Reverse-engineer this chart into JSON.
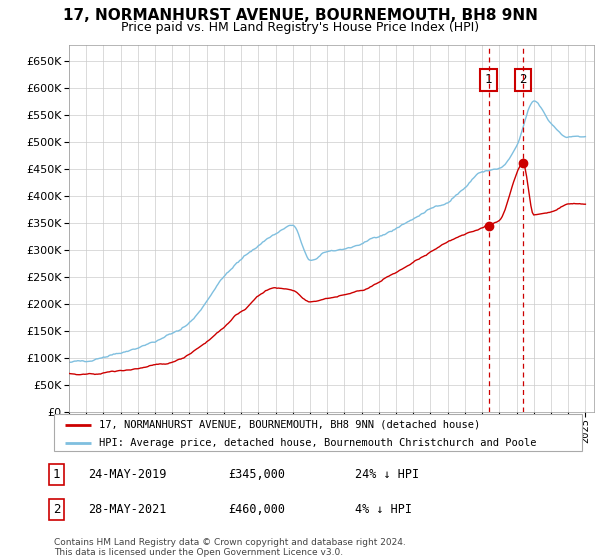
{
  "title": "17, NORMANHURST AVENUE, BOURNEMOUTH, BH8 9NN",
  "subtitle": "Price paid vs. HM Land Registry's House Price Index (HPI)",
  "legend_line1": "17, NORMANHURST AVENUE, BOURNEMOUTH, BH8 9NN (detached house)",
  "legend_line2": "HPI: Average price, detached house, Bournemouth Christchurch and Poole",
  "footer": "Contains HM Land Registry data © Crown copyright and database right 2024.\nThis data is licensed under the Open Government Licence v3.0.",
  "transaction1_date": "24-MAY-2019",
  "transaction1_price": 345000,
  "transaction1_hpi": "24% ↓ HPI",
  "transaction2_date": "28-MAY-2021",
  "transaction2_price": 460000,
  "transaction2_hpi": "4% ↓ HPI",
  "t1_year": 2019.375,
  "t2_year": 2021.375,
  "hpi_color": "#7fbfdf",
  "price_color": "#cc0000",
  "vline_color": "#cc0000",
  "box_edge_color": "#cc0000",
  "ylim_min": 0,
  "ylim_max": 680000,
  "xlim_min": 1995,
  "xlim_max": 2025.5,
  "background_color": "#ffffff",
  "grid_color": "#cccccc",
  "title_fontsize": 11,
  "subtitle_fontsize": 9
}
